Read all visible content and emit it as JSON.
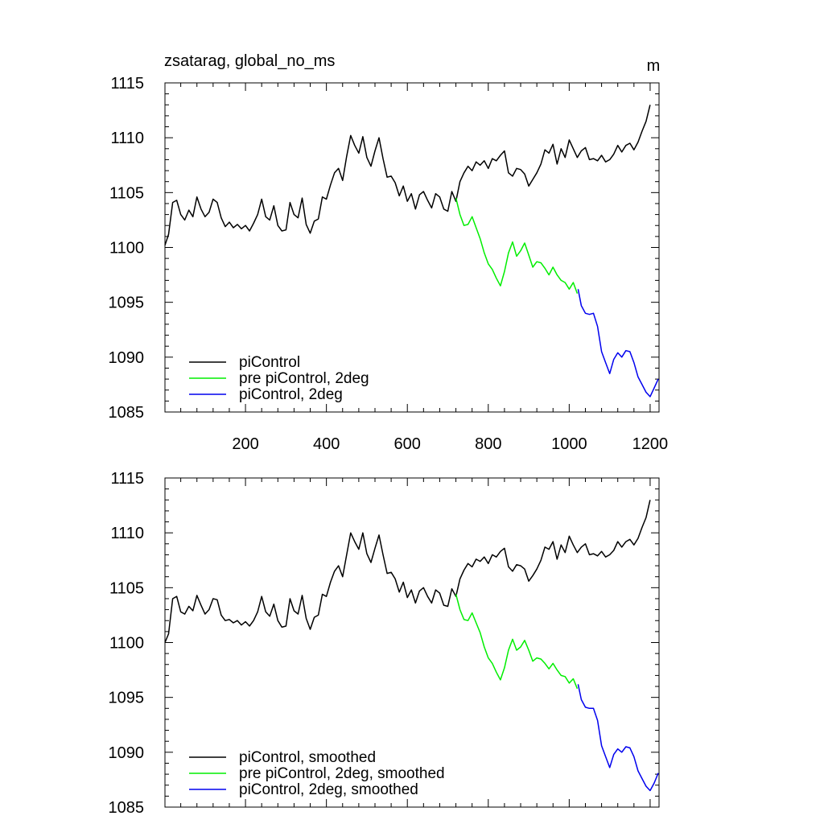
{
  "figure": {
    "title_left": "zsatarag, global_no_ms",
    "units": "m"
  },
  "colors": {
    "piControl": "#000000",
    "pre_piControl_2deg": "#00ee00",
    "piControl_2deg": "#0000ee"
  },
  "chart_data": [
    {
      "type": "line",
      "title": "zsatarag, global_no_ms",
      "units_label": "m",
      "xlabel": "",
      "ylabel": "",
      "xlim": [
        1,
        1222
      ],
      "ylim": [
        1085,
        1115
      ],
      "x_ticks": [
        200,
        400,
        600,
        800,
        1000,
        1200
      ],
      "x_ticklabels": [
        "200",
        "400",
        "600",
        "800",
        "1000",
        "1200"
      ],
      "y_ticks": [
        1085,
        1090,
        1095,
        1100,
        1105,
        1110,
        1115
      ],
      "y_ticklabels": [
        "1085",
        "1090",
        "1095",
        "1100",
        "1105",
        "1110",
        "1115"
      ],
      "legend": [
        "piControl",
        "pre piControl, 2deg",
        "piControl, 2deg"
      ],
      "legend_position": "bottom-left",
      "series": [
        {
          "name": "piControl",
          "color": "#000000",
          "x": [
            1,
            10,
            20,
            30,
            40,
            50,
            60,
            70,
            80,
            90,
            100,
            110,
            120,
            130,
            140,
            150,
            160,
            170,
            180,
            190,
            200,
            210,
            220,
            230,
            240,
            250,
            260,
            270,
            280,
            290,
            300,
            310,
            320,
            330,
            340,
            350,
            360,
            370,
            380,
            390,
            400,
            410,
            420,
            430,
            440,
            450,
            460,
            470,
            480,
            490,
            500,
            510,
            520,
            530,
            540,
            550,
            560,
            570,
            580,
            590,
            600,
            610,
            620,
            630,
            640,
            650,
            660,
            670,
            680,
            690,
            700,
            710,
            720,
            730,
            740,
            750,
            760,
            770,
            780,
            790,
            800,
            810,
            820,
            830,
            840,
            850,
            860,
            870,
            880,
            890,
            900,
            910,
            920,
            930,
            940,
            950,
            960,
            970,
            980,
            990,
            1000,
            1010,
            1020,
            1030,
            1040,
            1050,
            1060,
            1070,
            1080,
            1090,
            1100,
            1110,
            1120,
            1130,
            1140,
            1150,
            1160,
            1170,
            1180,
            1190,
            1200
          ],
          "y": [
            1100.2,
            1101.2,
            1104.1,
            1104.3,
            1103.0,
            1102.5,
            1103.4,
            1102.8,
            1104.6,
            1103.5,
            1102.8,
            1103.2,
            1104.4,
            1104.1,
            1102.7,
            1101.9,
            1102.3,
            1101.8,
            1102.1,
            1101.7,
            1102.0,
            1101.5,
            1102.2,
            1103.0,
            1104.4,
            1102.8,
            1102.5,
            1103.8,
            1102.0,
            1101.5,
            1101.6,
            1104.1,
            1103.0,
            1102.7,
            1104.5,
            1102.1,
            1101.3,
            1102.4,
            1102.6,
            1104.6,
            1104.4,
            1105.7,
            1106.8,
            1107.2,
            1106.1,
            1108.3,
            1110.2,
            1109.3,
            1108.6,
            1110.1,
            1108.2,
            1107.4,
            1108.8,
            1110.0,
            1108.1,
            1106.4,
            1106.5,
            1105.9,
            1104.7,
            1105.6,
            1104.2,
            1104.9,
            1103.5,
            1104.8,
            1105.1,
            1104.3,
            1103.6,
            1104.9,
            1104.6,
            1103.5,
            1103.3,
            1105.1,
            1104.2,
            1106.0,
            1106.8,
            1107.4,
            1107.0,
            1107.8,
            1107.5,
            1107.9,
            1107.2,
            1108.1,
            1107.9,
            1108.4,
            1108.8,
            1106.8,
            1106.5,
            1107.2,
            1107.1,
            1106.7,
            1105.6,
            1106.2,
            1106.8,
            1107.6,
            1108.9,
            1108.6,
            1109.4,
            1107.6,
            1109.0,
            1108.2,
            1109.8,
            1109.0,
            1108.2,
            1108.8,
            1109.1,
            1108.0,
            1108.1,
            1107.9,
            1108.4,
            1107.8,
            1108.0,
            1108.5,
            1109.3,
            1108.7,
            1109.3,
            1109.5,
            1108.9,
            1109.6,
            1110.6,
            1111.5,
            1113.0
          ]
        },
        {
          "name": "pre piControl, 2deg",
          "color": "#00ee00",
          "x": [
            720,
            730,
            740,
            750,
            760,
            770,
            780,
            790,
            800,
            810,
            820,
            830,
            840,
            850,
            860,
            870,
            880,
            890,
            900,
            910,
            920,
            930,
            940,
            950,
            960,
            970,
            980,
            990,
            1000,
            1010,
            1020
          ],
          "y": [
            1104.5,
            1103.0,
            1102.0,
            1102.1,
            1102.8,
            1101.8,
            1100.8,
            1099.5,
            1098.5,
            1098.0,
            1097.2,
            1096.5,
            1097.8,
            1099.5,
            1100.5,
            1099.2,
            1099.7,
            1100.4,
            1099.3,
            1098.2,
            1098.7,
            1098.6,
            1098.1,
            1097.5,
            1098.2,
            1097.5,
            1097.0,
            1096.8,
            1096.2,
            1096.8,
            1095.8
          ]
        },
        {
          "name": "piControl, 2deg",
          "color": "#0000ee",
          "x": [
            1022,
            1030,
            1040,
            1050,
            1060,
            1070,
            1080,
            1090,
            1100,
            1110,
            1120,
            1130,
            1140,
            1150,
            1160,
            1170,
            1180,
            1190,
            1200,
            1210,
            1220
          ],
          "y": [
            1096.2,
            1094.7,
            1094.0,
            1093.9,
            1094.0,
            1092.8,
            1090.5,
            1089.5,
            1088.5,
            1089.8,
            1090.4,
            1090.0,
            1090.6,
            1090.5,
            1089.5,
            1088.2,
            1087.5,
            1086.8,
            1086.4,
            1087.2,
            1088.0
          ]
        }
      ]
    },
    {
      "type": "line",
      "title": "",
      "xlabel": "",
      "ylabel": "",
      "xlim": [
        1,
        1222
      ],
      "ylim": [
        1085,
        1115
      ],
      "x_ticks": [
        200,
        400,
        600,
        800,
        1000,
        1200
      ],
      "y_ticks": [
        1085,
        1090,
        1095,
        1100,
        1105,
        1110,
        1115
      ],
      "y_ticklabels": [
        "1085",
        "1090",
        "1095",
        "1100",
        "1105",
        "1110",
        "1115"
      ],
      "legend": [
        "piControl, smoothed",
        "pre piControl, 2deg, smoothed",
        "piControl, 2deg, smoothed"
      ],
      "legend_position": "bottom-left",
      "series": [
        {
          "name": "piControl, smoothed",
          "color": "#000000",
          "x": [
            1,
            10,
            20,
            30,
            40,
            50,
            60,
            70,
            80,
            90,
            100,
            110,
            120,
            130,
            140,
            150,
            160,
            170,
            180,
            190,
            200,
            210,
            220,
            230,
            240,
            250,
            260,
            270,
            280,
            290,
            300,
            310,
            320,
            330,
            340,
            350,
            360,
            370,
            380,
            390,
            400,
            410,
            420,
            430,
            440,
            450,
            460,
            470,
            480,
            490,
            500,
            510,
            520,
            530,
            540,
            550,
            560,
            570,
            580,
            590,
            600,
            610,
            620,
            630,
            640,
            650,
            660,
            670,
            680,
            690,
            700,
            710,
            720,
            730,
            740,
            750,
            760,
            770,
            780,
            790,
            800,
            810,
            820,
            830,
            840,
            850,
            860,
            870,
            880,
            890,
            900,
            910,
            920,
            930,
            940,
            950,
            960,
            970,
            980,
            990,
            1000,
            1010,
            1020,
            1030,
            1040,
            1050,
            1060,
            1070,
            1080,
            1090,
            1100,
            1110,
            1120,
            1130,
            1140,
            1150,
            1160,
            1170,
            1180,
            1190,
            1200
          ],
          "y": [
            1100.0,
            1100.8,
            1104.0,
            1104.2,
            1102.8,
            1102.6,
            1103.3,
            1102.9,
            1104.3,
            1103.4,
            1102.6,
            1103.0,
            1104.0,
            1103.9,
            1102.5,
            1102.0,
            1102.1,
            1101.8,
            1102.0,
            1101.6,
            1101.9,
            1101.5,
            1102.0,
            1102.8,
            1104.2,
            1102.8,
            1102.4,
            1103.5,
            1102.0,
            1101.4,
            1101.5,
            1104.0,
            1102.9,
            1102.6,
            1104.3,
            1102.2,
            1101.2,
            1102.3,
            1102.5,
            1104.4,
            1104.2,
            1105.5,
            1106.5,
            1107.0,
            1106.0,
            1108.0,
            1110.0,
            1109.2,
            1108.5,
            1110.0,
            1108.1,
            1107.3,
            1108.6,
            1109.8,
            1108.0,
            1106.3,
            1106.4,
            1105.8,
            1104.6,
            1105.5,
            1104.1,
            1104.8,
            1103.6,
            1104.7,
            1105.0,
            1104.2,
            1103.6,
            1104.8,
            1104.5,
            1103.4,
            1103.3,
            1104.9,
            1104.2,
            1105.8,
            1106.6,
            1107.2,
            1106.9,
            1107.6,
            1107.4,
            1107.8,
            1107.2,
            1108.0,
            1107.8,
            1108.3,
            1108.6,
            1106.9,
            1106.5,
            1107.1,
            1107.0,
            1106.7,
            1105.6,
            1106.1,
            1106.7,
            1107.5,
            1108.7,
            1108.5,
            1109.2,
            1107.6,
            1108.9,
            1108.2,
            1109.7,
            1108.9,
            1108.2,
            1108.7,
            1109.0,
            1108.0,
            1108.1,
            1107.9,
            1108.3,
            1107.8,
            1108.0,
            1108.4,
            1109.2,
            1108.7,
            1109.2,
            1109.4,
            1108.9,
            1109.5,
            1110.5,
            1111.4,
            1113.0
          ]
        },
        {
          "name": "pre piControl, 2deg, smoothed",
          "color": "#00ee00",
          "x": [
            720,
            730,
            740,
            750,
            760,
            770,
            780,
            790,
            800,
            810,
            820,
            830,
            840,
            850,
            860,
            870,
            880,
            890,
            900,
            910,
            920,
            930,
            940,
            950,
            960,
            970,
            980,
            990,
            1000,
            1010,
            1020
          ],
          "y": [
            1104.4,
            1103.0,
            1102.1,
            1102.0,
            1102.7,
            1101.8,
            1100.9,
            1099.6,
            1098.6,
            1098.1,
            1097.3,
            1096.6,
            1097.7,
            1099.3,
            1100.3,
            1099.3,
            1099.6,
            1100.2,
            1099.3,
            1098.3,
            1098.6,
            1098.5,
            1098.1,
            1097.6,
            1098.1,
            1097.5,
            1097.0,
            1096.9,
            1096.3,
            1096.7,
            1095.8
          ]
        },
        {
          "name": "piControl, 2deg, smoothed",
          "color": "#0000ee",
          "x": [
            1022,
            1030,
            1040,
            1050,
            1060,
            1070,
            1080,
            1090,
            1100,
            1110,
            1120,
            1130,
            1140,
            1150,
            1160,
            1170,
            1180,
            1190,
            1200,
            1210,
            1220
          ],
          "y": [
            1096.2,
            1094.8,
            1094.1,
            1094.0,
            1094.0,
            1092.9,
            1090.6,
            1089.6,
            1088.6,
            1089.8,
            1090.3,
            1090.0,
            1090.5,
            1090.4,
            1089.6,
            1088.3,
            1087.6,
            1086.9,
            1086.5,
            1087.2,
            1088.1
          ]
        }
      ]
    }
  ]
}
